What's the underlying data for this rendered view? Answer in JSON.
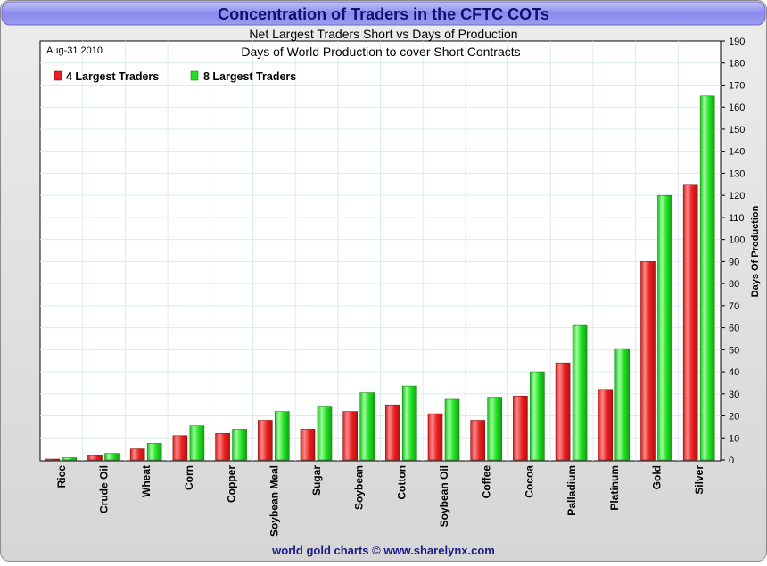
{
  "header": {
    "title": "Concentration of Traders in the CFTC COTs"
  },
  "chart_data": {
    "type": "bar",
    "title": "Net Largest Traders Short vs Days of Production",
    "subtitle": "Days of World Production to cover Short Contracts",
    "date_label": "Aug-31  2010",
    "xlabel": "",
    "ylabel": "Days Of Production",
    "ylim": [
      0,
      190
    ],
    "ytick_step": 10,
    "grid": true,
    "legend_position": "top-left",
    "categories": [
      "Rice",
      "Crude Oil",
      "Wheat",
      "Corn",
      "Copper",
      "Soybean Meal",
      "Sugar",
      "Soybean",
      "Cotton",
      "Soybean Oil",
      "Coffee",
      "Cocoa",
      "Palladium",
      "Platinum",
      "Gold",
      "Silver"
    ],
    "series": [
      {
        "name": "4 Largest Traders",
        "color": "#e82020",
        "values": [
          0.4,
          2,
          5,
          11,
          12,
          18,
          14,
          22,
          25,
          21,
          18,
          29,
          44,
          32,
          90,
          125
        ]
      },
      {
        "name": "8 Largest Traders",
        "color": "#22e022",
        "values": [
          1,
          3,
          7.5,
          15.5,
          14,
          22,
          24,
          30.5,
          33.5,
          27.5,
          28.5,
          40,
          61,
          50.5,
          120,
          165
        ]
      }
    ]
  },
  "footer": {
    "credit": "world gold charts © www.sharelynx.com"
  }
}
